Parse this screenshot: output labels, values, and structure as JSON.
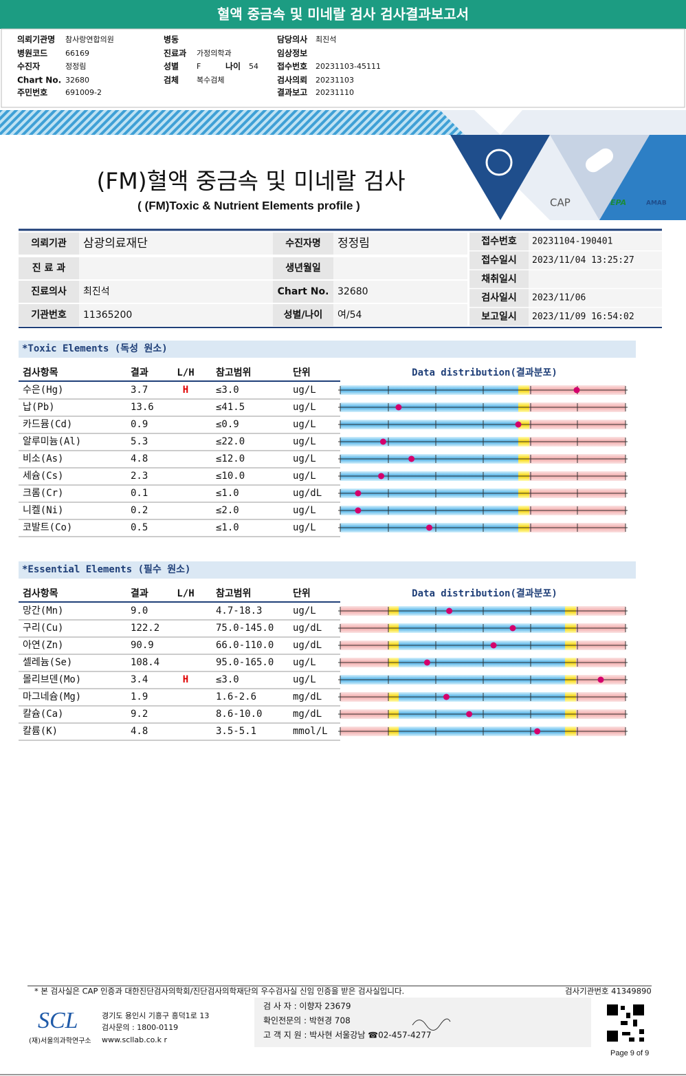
{
  "header": {
    "title": "혈액 중금속 및 미네랄 검사 검사결과보고서",
    "info": [
      [
        {
          "label": "의뢰기관명",
          "value": "참사랑연합의원"
        },
        {
          "label": "병원코드",
          "value": "66169"
        },
        {
          "label": "수진자",
          "value": "정정림"
        },
        {
          "label": "Chart No.",
          "value": "32680"
        },
        {
          "label": "주민번호",
          "value": "691009-2"
        }
      ],
      [
        {
          "label": "병동"
        },
        {
          "label": "진료과",
          "value": "가정의학과"
        },
        {
          "label": "성별",
          "value": "F"
        },
        {
          "label": "검체",
          "value": "복수검체"
        }
      ],
      [
        {
          "label": "담당의사",
          "value": "최진석"
        },
        {
          "label": "임상정보"
        },
        {
          "label": "접수번호",
          "value": "20231103-45111"
        },
        {
          "label": "검사의뢰",
          "value": "20231103"
        },
        {
          "label": "결과보고",
          "value": "20231110"
        }
      ]
    ],
    "age": {
      "label": "나이",
      "value": "54"
    }
  },
  "report": {
    "title": "(FM)혈액 중금속 및 미네랄 검사",
    "subtitle": "( (FM)Toxic & Nutrient Elements profile )",
    "logos": [
      "CAP",
      "EPA",
      "AMAB"
    ]
  },
  "patient": {
    "left": [
      [
        {
          "label": "의뢰기관",
          "value": "삼광의료재단"
        },
        {
          "label": "수진자명",
          "value": "정정림"
        }
      ],
      [
        {
          "label": "진 료 과"
        },
        {
          "label": "생년월일"
        }
      ],
      [
        {
          "label": "진료의사",
          "value": "최진석"
        },
        {
          "label": "Chart No.",
          "value": "32680"
        }
      ],
      [
        {
          "label": "기관번호",
          "value": "11365200"
        },
        {
          "label": "성별/나이",
          "value": "여/54"
        }
      ]
    ],
    "right": [
      {
        "label": "접수번호",
        "value": "20231104-190401"
      },
      {
        "label": "접수일시",
        "value": "2023/11/04 13:25:27"
      },
      {
        "label": "채취일시"
      },
      {
        "label": "검사일시",
        "value": "2023/11/06"
      },
      {
        "label": "보고일시",
        "value": "2023/11/09 16:54:02"
      }
    ]
  },
  "sections": [
    {
      "title": "*Toxic Elements (독성 원소)",
      "columns": [
        "검사항목",
        "결과",
        "L/H",
        "참고범위",
        "단위",
        "Data distribution(결과분포)"
      ],
      "rows": [
        {
          "item": "수은(Hg)",
          "result": "3.7",
          "flag": "H",
          "ref": "≤3.0",
          "unit": "ug/L"
        },
        {
          "item": "납(Pb)",
          "result": "13.6",
          "ref": "≤41.5",
          "unit": "ug/L"
        },
        {
          "item": "카드뮴(Cd)",
          "result": "0.9",
          "ref": "≤0.9",
          "unit": "ug/L"
        },
        {
          "item": "알루미늄(Al)",
          "result": "5.3",
          "ref": "≤22.0",
          "unit": "ug/L"
        },
        {
          "item": "비소(As)",
          "result": "4.8",
          "ref": "≤12.0",
          "unit": "ug/L"
        },
        {
          "item": "세슘(Cs)",
          "result": "2.3",
          "ref": "≤10.0",
          "unit": "ug/L"
        },
        {
          "item": "크롬(Cr)",
          "result": "0.1",
          "ref": "≤1.0",
          "unit": "ug/dL"
        },
        {
          "item": "니켈(Ni)",
          "result": "0.2",
          "ref": "≤2.0",
          "unit": "ug/L"
        },
        {
          "item": "코발트(Co)",
          "result": "0.5",
          "ref": "≤1.0",
          "unit": "ug/L"
        }
      ]
    },
    {
      "title": "*Essential Elements (필수 원소)",
      "columns": [
        "검사항목",
        "결과",
        "L/H",
        "참고범위",
        "단위",
        "Data distribution(결과분포)"
      ],
      "rows": [
        {
          "item": "망간(Mn)",
          "result": "9.0",
          "ref": "4.7-18.3",
          "unit": "ug/L"
        },
        {
          "item": "구리(Cu)",
          "result": "122.2",
          "ref": "75.0-145.0",
          "unit": "ug/dL"
        },
        {
          "item": "아연(Zn)",
          "result": "90.9",
          "ref": "66.0-110.0",
          "unit": "ug/dL"
        },
        {
          "item": "셀레늄(Se)",
          "result": "108.4",
          "ref": "95.0-165.0",
          "unit": "ug/L"
        },
        {
          "item": "몰리브덴(Mo)",
          "result": "3.4",
          "flag": "H",
          "ref": "≤3.0",
          "unit": "ug/L"
        },
        {
          "item": "마그네슘(Mg)",
          "result": "1.9",
          "ref": "1.6-2.6",
          "unit": "mg/dL"
        },
        {
          "item": "칼슘(Ca)",
          "result": "9.2",
          "ref": "8.6-10.0",
          "unit": "mg/dL"
        },
        {
          "item": "칼륨(K)",
          "result": "4.8",
          "ref": "3.5-5.1",
          "unit": "mmol/L"
        }
      ]
    }
  ],
  "footer": {
    "note": "* 본 검사실은 CAP 인증과 대한진단검사의학회/진단검사의학재단의 우수검사실 신임 인증을 받은 검사실입니다.",
    "lab_number": "검사기관번호 41349890",
    "logo": "SCL",
    "institute": "(재)서울의과학연구소",
    "address": "경기도 용인시 기흥구 흥덕1로 13",
    "inquiry": "검사문의 : 1800-0119",
    "website": "www.scllab.co.k r",
    "staff": [
      "검 사 자 : 이향자 23679",
      "확인전문의 : 박현경 708",
      "고 객 지 원 : 박사현 서울강남 ☎02-457-4277"
    ],
    "page": "Page 9 of 9"
  }
}
